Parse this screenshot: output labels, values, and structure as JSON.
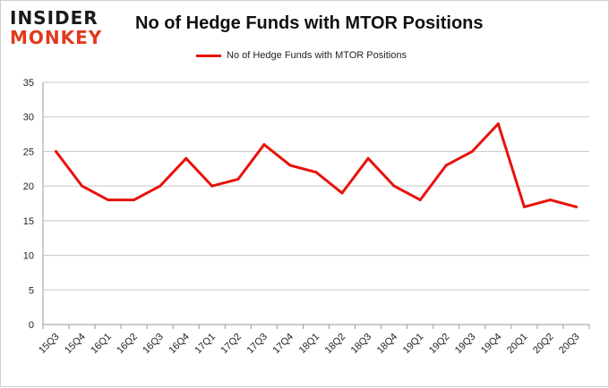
{
  "logo": {
    "top": "INSIDER",
    "bottom": "MONKEY"
  },
  "colors": {
    "series": "#e8120c",
    "grid": "#c8c8c8",
    "logo_accent": "#e03a1e",
    "frame_border": "#cfcfcf"
  },
  "chart_data": {
    "type": "line",
    "title": "No of Hedge Funds with MTOR Positions",
    "legend_position": "top",
    "grid": true,
    "ylim": [
      0,
      35
    ],
    "yticks": [
      0,
      5,
      10,
      15,
      20,
      25,
      30,
      35
    ],
    "categories": [
      "15Q3",
      "15Q4",
      "16Q1",
      "16Q2",
      "16Q3",
      "16Q4",
      "17Q1",
      "17Q2",
      "17Q3",
      "17Q4",
      "18Q1",
      "18Q2",
      "18Q3",
      "18Q4",
      "19Q1",
      "19Q2",
      "19Q3",
      "19Q4",
      "20Q1",
      "20Q2",
      "20Q3"
    ],
    "series": [
      {
        "name": "No of Hedge Funds with MTOR Positions",
        "values": [
          25,
          20,
          18,
          18,
          20,
          24,
          20,
          21,
          26,
          23,
          22,
          19,
          24,
          20,
          18,
          23,
          25,
          29,
          17,
          18,
          17
        ]
      }
    ]
  }
}
